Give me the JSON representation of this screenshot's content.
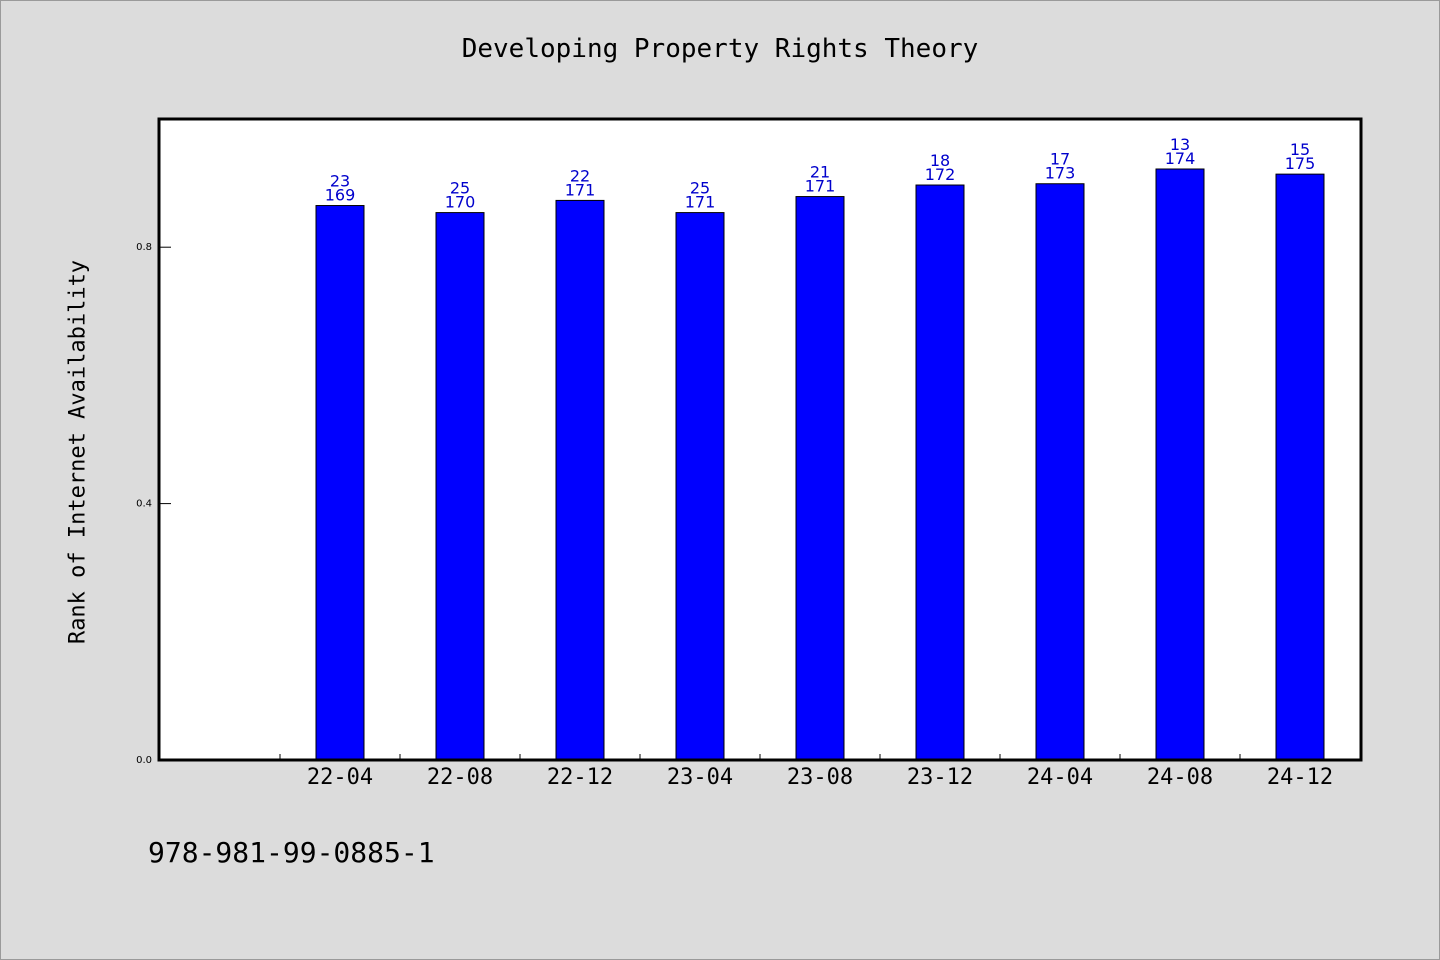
{
  "chart_data": {
    "type": "bar",
    "title": "Developing Property Rights Theory",
    "xlabel": "",
    "ylabel": "Rank of Internet Availability",
    "categories": [
      "22-04",
      "22-08",
      "22-12",
      "23-04",
      "23-08",
      "23-12",
      "24-04",
      "24-08",
      "24-12"
    ],
    "values": [
      0.865,
      0.854,
      0.873,
      0.854,
      0.879,
      0.897,
      0.899,
      0.922,
      0.914
    ],
    "labels_top": [
      "23",
      "25",
      "22",
      "25",
      "21",
      "18",
      "17",
      "13",
      "15"
    ],
    "labels_bottom": [
      "169",
      "170",
      "171",
      "171",
      "171",
      "172",
      "173",
      "174",
      "175"
    ],
    "yticks": [
      "0.0",
      "0.4",
      "0.8"
    ],
    "ylim": [
      0,
      1.0
    ],
    "bar_color": "#0000ff",
    "label_color": "#0000cc",
    "grid": false,
    "legend": "none"
  },
  "footer": {
    "isbn": "978-981-99-0885-1"
  }
}
